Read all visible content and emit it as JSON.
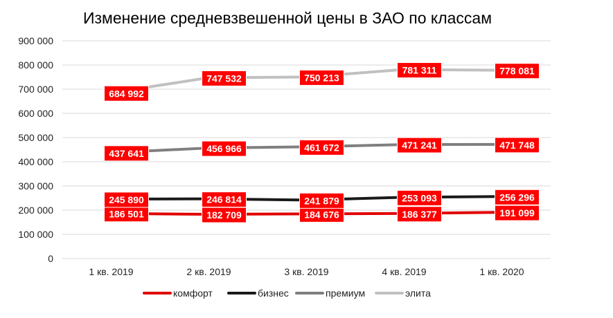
{
  "chart_data": {
    "type": "line",
    "title": "Изменение средневзвешенной цены в ЗАО по классам",
    "xlabel": "",
    "ylabel": "",
    "categories": [
      "1 кв. 2019",
      "2 кв. 2019",
      "3 кв. 2019",
      "4 кв. 2019",
      "1 кв. 2020"
    ],
    "ylim": [
      0,
      900000
    ],
    "yticks": [
      0,
      100000,
      200000,
      300000,
      400000,
      500000,
      600000,
      700000,
      800000,
      900000
    ],
    "ytick_labels": [
      "0",
      "100 000",
      "200 000",
      "300 000",
      "400 000",
      "500 000",
      "600 000",
      "700 000",
      "800 000",
      "900 000"
    ],
    "grid": true,
    "legend_position": "bottom",
    "label_color": "#ff0000",
    "series": [
      {
        "name": "комфорт",
        "color": "#e00000",
        "values": [
          186501,
          182709,
          184676,
          186377,
          191099
        ],
        "labels": [
          "186 501",
          "182 709",
          "184 676",
          "186 377",
          "191 099"
        ]
      },
      {
        "name": "бизнес",
        "color": "#1a1a1a",
        "values": [
          245890,
          246814,
          241879,
          253093,
          256296
        ],
        "labels": [
          "245 890",
          "246 814",
          "241 879",
          "253 093",
          "256 296"
        ]
      },
      {
        "name": "премиум",
        "color": "#7f7f7f",
        "values": [
          437641,
          456966,
          461672,
          471241,
          471748
        ],
        "labels": [
          "437 641",
          "456 966",
          "461 672",
          "471 241",
          "471 748"
        ]
      },
      {
        "name": "элита",
        "color": "#c0c0c0",
        "values": [
          684992,
          747532,
          750213,
          781311,
          778081
        ],
        "labels": [
          "684 992",
          "747 532",
          "750 213",
          "781 311",
          "778 081"
        ]
      }
    ]
  }
}
